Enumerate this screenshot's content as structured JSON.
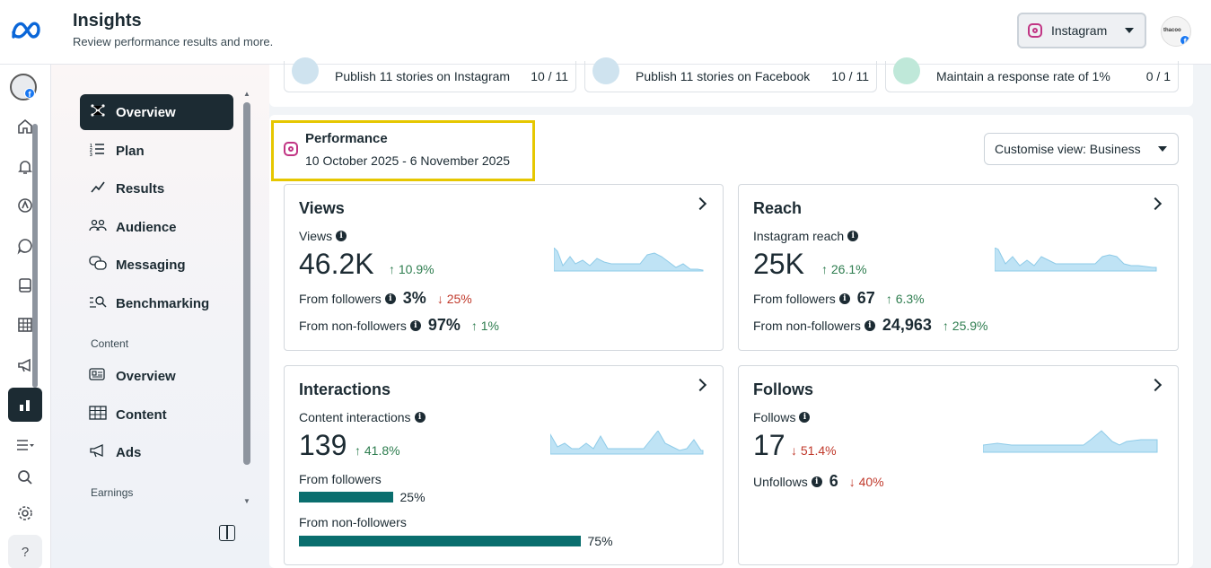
{
  "header": {
    "title": "Insights",
    "subtitle": "Review performance results and more.",
    "platform_label": "Instagram",
    "avatar_text": "thacoo"
  },
  "rail": {
    "items": [
      "home-icon",
      "bell-icon",
      "ad-center-icon",
      "chat-icon",
      "pages-icon",
      "table-icon",
      "megaphone-icon",
      "insights-icon",
      "menu-icon",
      "search-icon",
      "gear-icon",
      "help-icon"
    ],
    "help_label": "?"
  },
  "sidebar": {
    "items": [
      {
        "label": "Overview",
        "icon": "overview-icon",
        "active": true
      },
      {
        "label": "Plan",
        "icon": "plan-icon"
      },
      {
        "label": "Results",
        "icon": "results-icon"
      },
      {
        "label": "Audience",
        "icon": "audience-icon"
      },
      {
        "label": "Messaging",
        "icon": "messaging-icon"
      },
      {
        "label": "Benchmarking",
        "icon": "benchmarking-icon"
      }
    ],
    "content_section": "Content",
    "content_items": [
      {
        "label": "Overview",
        "icon": "content-overview-icon"
      },
      {
        "label": "Content",
        "icon": "content-table-icon"
      },
      {
        "label": "Ads",
        "icon": "ads-megaphone-icon"
      }
    ],
    "earnings_section": "Earnings"
  },
  "goals": [
    {
      "text": "Publish 11 stories on Instagram",
      "count": "10 / 11"
    },
    {
      "text": "Publish 11 stories on Facebook",
      "count": "10 / 11"
    },
    {
      "text": "Maintain a response rate of 1%",
      "count": "0 / 1"
    }
  ],
  "performance": {
    "title": "Performance",
    "date_range": "10 October 2025 - 6 November 2025",
    "customise_label": "Customise view: Business"
  },
  "metrics": {
    "views": {
      "title": "Views",
      "sub": "Views",
      "value": "46.2K",
      "change": "↑ 10.9%",
      "rows": [
        {
          "label": "From followers",
          "value": "3%",
          "change": "↓ 25%",
          "dir": "down"
        },
        {
          "label": "From non-followers",
          "value": "97%",
          "change": "↑ 1%",
          "dir": "up"
        }
      ]
    },
    "reach": {
      "title": "Reach",
      "sub": "Instagram reach",
      "value": "25K",
      "change": "↑ 26.1%",
      "rows": [
        {
          "label": "From followers",
          "value": "67",
          "change": "↑ 6.3%",
          "dir": "up"
        },
        {
          "label": "From non-followers",
          "value": "24,963",
          "change": "↑ 25.9%",
          "dir": "up"
        }
      ]
    },
    "interactions": {
      "title": "Interactions",
      "sub": "Content interactions",
      "value": "139",
      "change": "↑ 41.8%",
      "bars": [
        {
          "label": "From followers",
          "percent_text": "25%",
          "percent": 25
        },
        {
          "label": "From non-followers",
          "percent_text": "75%",
          "percent": 75
        }
      ]
    },
    "follows": {
      "title": "Follows",
      "sub": "Follows",
      "value": "17",
      "change": "↓ 51.4%",
      "unfollows_label": "Unfollows",
      "unfollows_value": "6",
      "unfollows_change": "↓ 40%"
    }
  },
  "colors": {
    "accent": "#1c2b33",
    "bar": "#0a6e6e",
    "spark": "#bfe3f5",
    "up": "#2e7d4f",
    "down": "#c0392b",
    "highlight": "#e6c700"
  }
}
